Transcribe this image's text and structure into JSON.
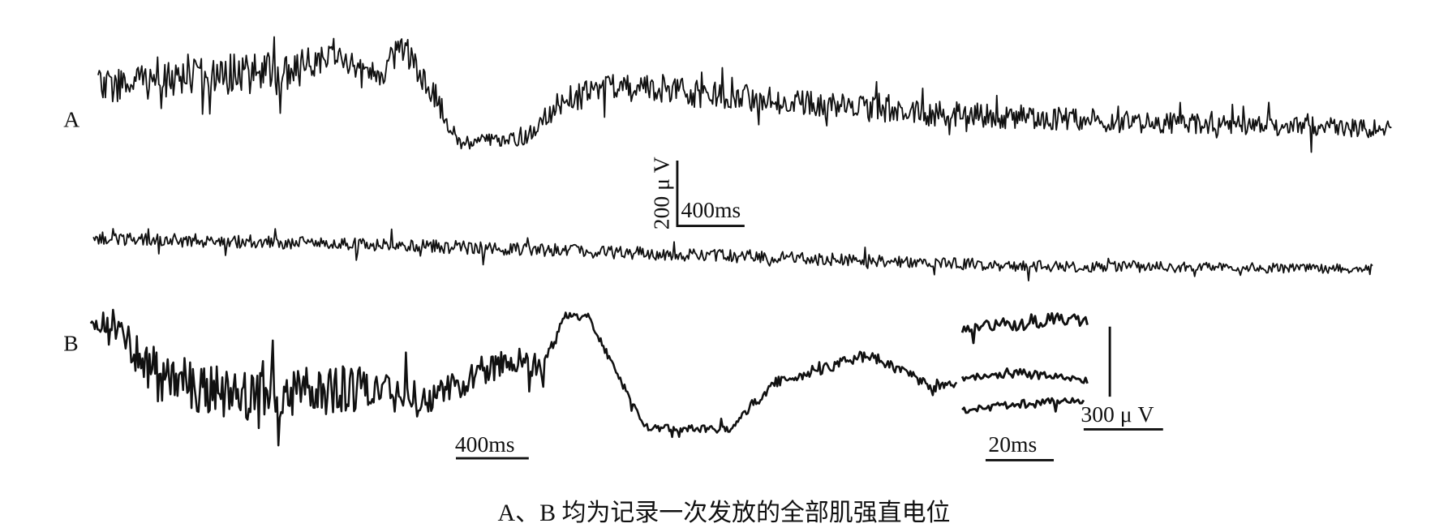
{
  "panels": [
    {
      "label": "A",
      "scale_y": "200 μ V",
      "scale_x": "400ms"
    },
    {
      "label": "B",
      "scale_x": "400ms",
      "inset_scale_x": "20ms",
      "inset_scale_y": "300 μ V"
    }
  ],
  "caption": "A、B 均为记录一次发放的全部肌强直电位"
}
